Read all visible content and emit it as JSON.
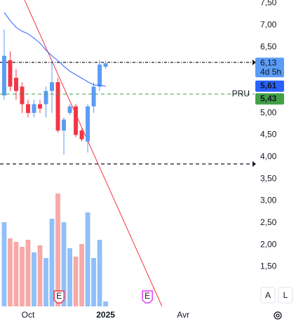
{
  "chart_data": {
    "type": "candlestick",
    "x": [
      0,
      1,
      2,
      3,
      4,
      5,
      6,
      7,
      8,
      9,
      10,
      11,
      12,
      13,
      14,
      15,
      16,
      17
    ],
    "open": [
      5.4,
      6.2,
      5.8,
      5.6,
      5.2,
      5.0,
      5.2,
      5.2,
      5.5,
      5.7,
      4.6,
      5.0,
      5.15,
      4.6,
      4.35,
      5.15,
      5.6,
      6.05
    ],
    "high": [
      6.9,
      6.4,
      6.0,
      5.7,
      5.3,
      5.3,
      5.3,
      5.6,
      6.2,
      5.8,
      4.9,
      5.2,
      5.2,
      4.65,
      5.2,
      5.7,
      6.2,
      6.2
    ],
    "low": [
      5.3,
      5.5,
      5.3,
      5.0,
      4.9,
      4.9,
      5.0,
      4.9,
      5.0,
      4.55,
      4.05,
      4.95,
      4.45,
      4.35,
      4.1,
      5.0,
      5.5,
      6.0
    ],
    "close": [
      6.3,
      5.6,
      5.5,
      5.2,
      5.0,
      5.2,
      5.1,
      5.5,
      5.7,
      4.6,
      4.85,
      5.15,
      4.5,
      4.4,
      5.15,
      5.6,
      6.1,
      6.13
    ],
    "up_color": "#5b9cf6",
    "down_color": "#f23645",
    "volume": {
      "values": [
        60,
        48.5,
        46,
        42.5,
        47.5,
        38.5,
        43.5,
        34.5,
        62.5,
        80.5,
        60,
        41.5,
        35.5,
        44.5,
        67,
        34.5,
        47.5,
        3.5
      ],
      "lim": [
        0,
        100
      ],
      "up_color": "#90bff9",
      "down_color": "#f7a9a7"
    },
    "moving_average": {
      "color": "#2962ff",
      "values": [
        7.29,
        7.1,
        6.95,
        6.86,
        6.8,
        6.7,
        6.59,
        6.43,
        6.3,
        6.19,
        6.06,
        5.95,
        5.87,
        5.79,
        5.71,
        5.64,
        5.63,
        5.61
      ]
    },
    "xlim": [
      -0.7,
      42.2
    ],
    "xticks": [
      {
        "value": 4,
        "label": "Oct"
      },
      {
        "value": 17,
        "label": "2025"
      },
      {
        "value": 30,
        "label": "Avr"
      }
    ],
    "ylim": [
      0.6,
      7.57
    ],
    "yticks": [
      {
        "value": 7.5,
        "label": "7,50"
      },
      {
        "value": 7,
        "label": "7,00"
      },
      {
        "value": 6.5,
        "label": "6,50"
      },
      {
        "value": 5,
        "label": "5,00"
      },
      {
        "value": 4.5,
        "label": "4,50"
      },
      {
        "value": 4,
        "label": "4,00"
      },
      {
        "value": 3.5,
        "label": "3,50"
      },
      {
        "value": 3,
        "label": "3,00"
      },
      {
        "value": 2.5,
        "label": "2,50"
      },
      {
        "value": 2,
        "label": "2,00"
      },
      {
        "value": 1.5,
        "label": "1,50"
      }
    ],
    "horizontal_lines": [
      6.15,
      3.84
    ],
    "price_badges": [
      {
        "value": 6.13,
        "label": "6,13",
        "sublabel": "4d 5h",
        "color": "#5b9cf6"
      },
      {
        "value": 5.61,
        "label": "5,61",
        "color": "#2962ff"
      },
      {
        "value": 5.43,
        "label": "5,43",
        "line_label": "PRU",
        "color": "#43a047"
      }
    ],
    "events": [
      {
        "x": 9.2,
        "label": "E",
        "color": "#f23645"
      },
      {
        "x": 24,
        "label": "E",
        "color": "#e040fb"
      }
    ],
    "buttons": [
      "A",
      "L"
    ]
  }
}
